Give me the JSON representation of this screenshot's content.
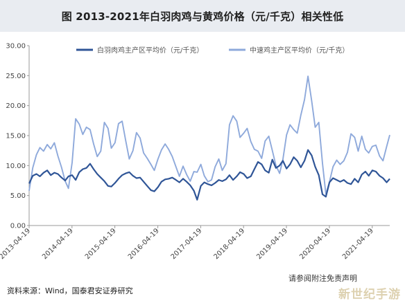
{
  "title": "图 2013-2021年白羽肉鸡与黄鸡价格（元/千克）相关性低",
  "source": "资料来源：Wind，国泰君安证券研究",
  "disclaimer": "请参阅附注免责声明",
  "watermark": "新世纪手游",
  "chart_data": {
    "type": "line",
    "title": "图 2013-2021年白羽肉鸡与黄鸡价格（元/千克）相关性低",
    "xlabel": "",
    "ylabel": "",
    "ylim": [
      0,
      30
    ],
    "yticks": [
      "0.00",
      "5.00",
      "10.00",
      "15.00",
      "20.00",
      "25.00",
      "30.00"
    ],
    "x_type": "date",
    "xlim": [
      "2013-04-19",
      "2021-09-15"
    ],
    "xticks": [
      "2013-04-19",
      "2014-04-19",
      "2015-04-19",
      "2016-04-19",
      "2017-04-19",
      "2018-04-19",
      "2019-04-19",
      "2020-04-19",
      "2021-04-19"
    ],
    "grid": false,
    "legend": "top",
    "series": [
      {
        "name": "白羽肉鸡主产区平均价（元/千克）",
        "color": "#2f5597",
        "x": [
          "2013-04-19",
          "2013-05-20",
          "2013-06-20",
          "2013-07-20",
          "2013-08-20",
          "2013-09-20",
          "2013-10-20",
          "2013-11-20",
          "2013-12-20",
          "2014-01-20",
          "2014-02-20",
          "2014-03-20",
          "2014-04-20",
          "2014-05-20",
          "2014-06-20",
          "2014-07-20",
          "2014-08-20",
          "2014-09-20",
          "2014-10-20",
          "2014-11-20",
          "2014-12-20",
          "2015-01-20",
          "2015-02-20",
          "2015-03-20",
          "2015-04-20",
          "2015-05-20",
          "2015-06-20",
          "2015-07-20",
          "2015-08-20",
          "2015-09-20",
          "2015-10-20",
          "2015-11-20",
          "2015-12-20",
          "2016-01-20",
          "2016-02-20",
          "2016-03-20",
          "2016-04-20",
          "2016-05-20",
          "2016-06-20",
          "2016-07-20",
          "2016-08-20",
          "2016-09-20",
          "2016-10-20",
          "2016-11-20",
          "2016-12-20",
          "2017-01-20",
          "2017-02-20",
          "2017-03-20",
          "2017-04-20",
          "2017-05-20",
          "2017-06-20",
          "2017-07-20",
          "2017-08-20",
          "2017-09-20",
          "2017-10-20",
          "2017-11-20",
          "2017-12-20",
          "2018-01-20",
          "2018-02-20",
          "2018-03-20",
          "2018-04-20",
          "2018-05-20",
          "2018-06-20",
          "2018-07-20",
          "2018-08-20",
          "2018-09-20",
          "2018-10-20",
          "2018-11-20",
          "2018-12-20",
          "2019-01-20",
          "2019-02-20",
          "2019-03-20",
          "2019-04-20",
          "2019-05-20",
          "2019-06-20",
          "2019-07-20",
          "2019-08-20",
          "2019-09-20",
          "2019-10-20",
          "2019-11-20",
          "2019-12-20",
          "2020-01-20",
          "2020-02-20",
          "2020-03-20",
          "2020-04-20",
          "2020-05-20",
          "2020-06-20",
          "2020-07-20",
          "2020-08-20",
          "2020-09-20",
          "2020-10-20",
          "2020-11-20",
          "2020-12-20",
          "2021-01-20",
          "2021-02-20",
          "2021-03-20",
          "2021-04-20",
          "2021-05-20",
          "2021-06-20",
          "2021-07-20",
          "2021-08-20",
          "2021-09-15"
        ],
        "values": [
          7.0,
          8.3,
          8.6,
          8.2,
          8.8,
          9.2,
          8.4,
          8.8,
          8.6,
          8.0,
          7.5,
          8.2,
          8.4,
          7.6,
          8.9,
          9.4,
          9.6,
          10.3,
          9.4,
          8.6,
          8.0,
          7.4,
          6.6,
          6.5,
          7.1,
          7.8,
          8.4,
          8.7,
          8.9,
          8.3,
          7.9,
          8.0,
          7.3,
          6.6,
          5.9,
          5.7,
          6.4,
          7.3,
          7.7,
          7.8,
          8.0,
          7.6,
          7.2,
          7.8,
          7.3,
          6.7,
          5.8,
          4.3,
          6.6,
          7.2,
          6.9,
          6.7,
          7.1,
          7.6,
          7.4,
          7.7,
          8.4,
          7.6,
          8.2,
          8.9,
          8.6,
          7.9,
          8.2,
          9.4,
          10.6,
          10.2,
          9.2,
          8.8,
          11.0,
          9.6,
          10.0,
          10.8,
          9.5,
          10.2,
          11.4,
          10.8,
          9.7,
          10.8,
          12.6,
          11.7,
          9.8,
          8.4,
          5.2,
          4.8,
          7.2,
          7.9,
          7.6,
          7.3,
          7.6,
          7.1,
          6.9,
          7.8,
          7.2,
          8.5,
          9.0,
          8.3,
          9.2,
          9.0,
          8.3,
          7.9,
          7.2,
          7.8
        ]
      },
      {
        "name": "中速鸡主产区平均价（元/千克）",
        "color": "#8ea9db",
        "x": [
          "2013-04-19",
          "2013-05-20",
          "2013-06-20",
          "2013-07-20",
          "2013-08-20",
          "2013-09-20",
          "2013-10-20",
          "2013-11-20",
          "2013-12-20",
          "2014-01-20",
          "2014-02-20",
          "2014-03-20",
          "2014-04-20",
          "2014-05-20",
          "2014-06-20",
          "2014-07-20",
          "2014-08-20",
          "2014-09-20",
          "2014-10-20",
          "2014-11-20",
          "2014-12-20",
          "2015-01-20",
          "2015-02-20",
          "2015-03-20",
          "2015-04-20",
          "2015-05-20",
          "2015-06-20",
          "2015-07-20",
          "2015-08-20",
          "2015-09-20",
          "2015-10-20",
          "2015-11-20",
          "2015-12-20",
          "2016-01-20",
          "2016-02-20",
          "2016-03-20",
          "2016-04-20",
          "2016-05-20",
          "2016-06-20",
          "2016-07-20",
          "2016-08-20",
          "2016-09-20",
          "2016-10-20",
          "2016-11-20",
          "2016-12-20",
          "2017-01-20",
          "2017-02-20",
          "2017-03-20",
          "2017-04-20",
          "2017-05-20",
          "2017-06-20",
          "2017-07-20",
          "2017-08-20",
          "2017-09-20",
          "2017-10-20",
          "2017-11-20",
          "2017-12-20",
          "2018-01-20",
          "2018-02-20",
          "2018-03-20",
          "2018-04-20",
          "2018-05-20",
          "2018-06-20",
          "2018-07-20",
          "2018-08-20",
          "2018-09-20",
          "2018-10-20",
          "2018-11-20",
          "2018-12-20",
          "2019-01-20",
          "2019-02-20",
          "2019-03-20",
          "2019-04-20",
          "2019-05-20",
          "2019-06-20",
          "2019-07-20",
          "2019-08-20",
          "2019-09-20",
          "2019-10-20",
          "2019-11-20",
          "2019-12-20",
          "2020-01-20",
          "2020-02-20",
          "2020-03-20",
          "2020-04-20",
          "2020-05-20",
          "2020-06-20",
          "2020-07-20",
          "2020-08-20",
          "2020-09-20",
          "2020-10-20",
          "2020-11-20",
          "2020-12-20",
          "2021-01-20",
          "2021-02-20",
          "2021-03-20",
          "2021-04-20",
          "2021-05-20",
          "2021-06-20",
          "2021-07-20",
          "2021-08-20",
          "2021-09-15"
        ],
        "values": [
          5.8,
          9.6,
          11.8,
          13.0,
          12.4,
          13.5,
          12.8,
          13.8,
          11.6,
          9.7,
          7.4,
          6.2,
          10.5,
          17.8,
          16.9,
          15.2,
          16.4,
          16.0,
          13.6,
          11.5,
          12.4,
          17.2,
          16.2,
          12.9,
          13.8,
          17.0,
          17.4,
          14.2,
          11.1,
          12.5,
          15.5,
          14.6,
          12.1,
          11.2,
          10.2,
          9.2,
          11.1,
          12.6,
          13.6,
          12.7,
          11.5,
          9.8,
          8.2,
          9.9,
          8.5,
          7.4,
          9.0,
          8.9,
          10.2,
          8.3,
          7.3,
          7.6,
          9.8,
          11.1,
          9.2,
          10.3,
          16.8,
          18.3,
          17.4,
          14.7,
          15.4,
          16.2,
          14.0,
          12.7,
          12.4,
          11.2,
          14.1,
          14.9,
          12.5,
          10.0,
          8.7,
          11.0,
          15.1,
          16.8,
          16.0,
          15.4,
          18.4,
          21.0,
          24.9,
          20.8,
          16.4,
          17.2,
          10.4,
          5.2,
          7.3,
          9.8,
          10.9,
          10.2,
          10.8,
          12.2,
          15.3,
          14.7,
          12.4,
          14.9,
          12.7,
          12.1,
          13.2,
          13.4,
          11.6,
          10.8,
          13.2,
          15.1
        ]
      }
    ]
  }
}
